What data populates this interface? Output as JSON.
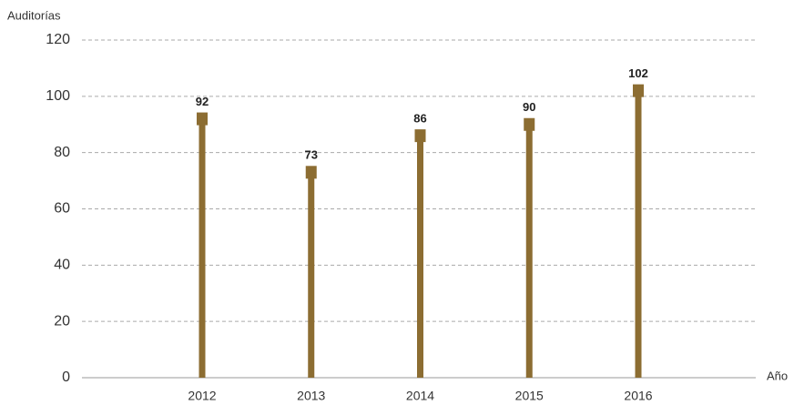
{
  "chart_data": {
    "type": "lollipop",
    "y_label": "Auditorías",
    "x_label": "Año",
    "categories": [
      "2012",
      "2013",
      "2014",
      "2015",
      "2016"
    ],
    "values": [
      92,
      73,
      86,
      90,
      102
    ],
    "color": "#8c6d32",
    "ylim": [
      0,
      120
    ],
    "yticks": [
      0,
      20,
      40,
      60,
      80,
      100,
      120
    ],
    "grid": true
  }
}
